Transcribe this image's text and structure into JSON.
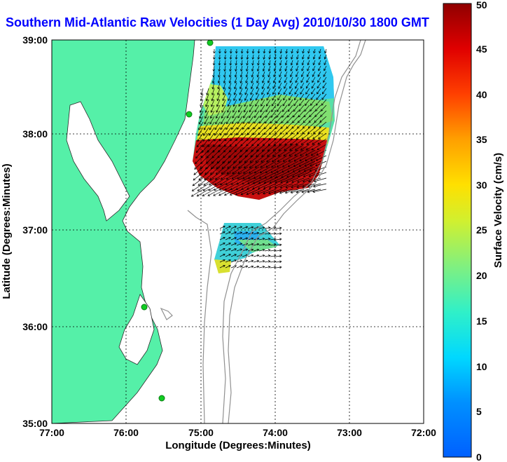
{
  "title": "Southern Mid-Atlantic Raw Velocities (1 Day Avg) 2010/10/30 1800 GMT",
  "map": {
    "xlabel": "Longitude (Degrees:Minutes)",
    "ylabel": "Latitude (Degrees:Minutes)",
    "x_ticks": [
      "77:00",
      "76:00",
      "75:00",
      "74:00",
      "73:00",
      "72:00"
    ],
    "y_ticks": [
      "39:00",
      "38:00",
      "37:00",
      "36:00",
      "35:00"
    ],
    "lon_range": [
      -77,
      -72
    ],
    "lat_range": [
      35,
      39
    ],
    "grid": true,
    "land_color": "#55f0a8",
    "bathymetry_color": "#909090",
    "station_color": "#11cc22"
  },
  "colorbar": {
    "label": "Surface Velocity (cm/s)",
    "ticks": [
      "0",
      "5",
      "10",
      "15",
      "20",
      "25",
      "30",
      "35",
      "40",
      "45",
      "50"
    ],
    "range": [
      0,
      50
    ],
    "colormap": "jet"
  }
}
